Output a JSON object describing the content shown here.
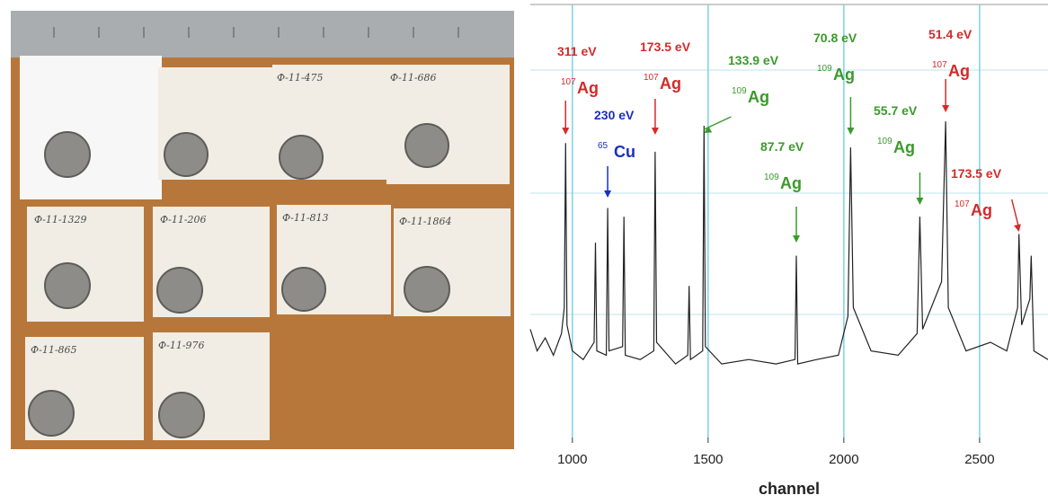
{
  "photo": {
    "labels": [
      "Ф-11-1329",
      "Ф-11-206",
      "Ф-11-813",
      "Ф-11-1864",
      "Ф-11-865",
      "Ф-11-976",
      "Ф-11-475",
      "Ф-11-686"
    ]
  },
  "chart_data": {
    "type": "line",
    "xlabel": "channel",
    "x": [
      845,
      870,
      900,
      930,
      960,
      970,
      975,
      980,
      1000,
      1040,
      1080,
      1085,
      1090,
      1125,
      1130,
      1135,
      1185,
      1190,
      1195,
      1250,
      1300,
      1305,
      1310,
      1380,
      1425,
      1430,
      1435,
      1480,
      1485,
      1490,
      1550,
      1650,
      1750,
      1820,
      1825,
      1830,
      1900,
      1980,
      2015,
      2025,
      2035,
      2100,
      2200,
      2270,
      2280,
      2290,
      2360,
      2375,
      2385,
      2450,
      2540,
      2600,
      2640,
      2645,
      2655,
      2685,
      2690,
      2700,
      2752
    ],
    "values": [
      25,
      20,
      23,
      19,
      24,
      30,
      68,
      26,
      20,
      18,
      22,
      45,
      20,
      19,
      53,
      20,
      21,
      51,
      19,
      18,
      20,
      66,
      22,
      17,
      19,
      35,
      18,
      20,
      72,
      21,
      17,
      18,
      17,
      18,
      42,
      17,
      18,
      19,
      28,
      67,
      30,
      20,
      19,
      24,
      51,
      25,
      36,
      73,
      30,
      20,
      22,
      20,
      30,
      47,
      26,
      32,
      42,
      20,
      18
    ],
    "color": "#222222",
    "xlim": [
      845,
      2752
    ],
    "xticks": [
      1000,
      1500,
      2000,
      2500
    ],
    "ylim": [
      0,
      100
    ],
    "grid": true,
    "annotations": [
      {
        "energy": "311 eV",
        "mass": "107",
        "element": "Ag",
        "x": 975,
        "color": "#d42a2a"
      },
      {
        "energy": "230 eV",
        "mass": "65",
        "element": "Cu",
        "x": 1130,
        "color": "#1a2fbf"
      },
      {
        "energy": "173.5 eV",
        "mass": "107",
        "element": "Ag",
        "x": 1305,
        "color": "#d42a2a"
      },
      {
        "energy": "133.9 eV",
        "mass": "109",
        "element": "Ag",
        "x": 1485,
        "color": "#3a9a2a"
      },
      {
        "energy": "87.7 eV",
        "mass": "109",
        "element": "Ag",
        "x": 1825,
        "color": "#3a9a2a"
      },
      {
        "energy": "70.8 eV",
        "mass": "109",
        "element": "Ag",
        "x": 2025,
        "color": "#3a9a2a"
      },
      {
        "energy": "55.7 eV",
        "mass": "109",
        "element": "Ag",
        "x": 2280,
        "color": "#3a9a2a"
      },
      {
        "energy": "51.4 eV",
        "mass": "107",
        "element": "Ag",
        "x": 2375,
        "color": "#d42a2a"
      },
      {
        "energy": "173.5 eV",
        "mass": "107",
        "element": "Ag",
        "x": 2645,
        "color": "#d42a2a"
      }
    ]
  }
}
